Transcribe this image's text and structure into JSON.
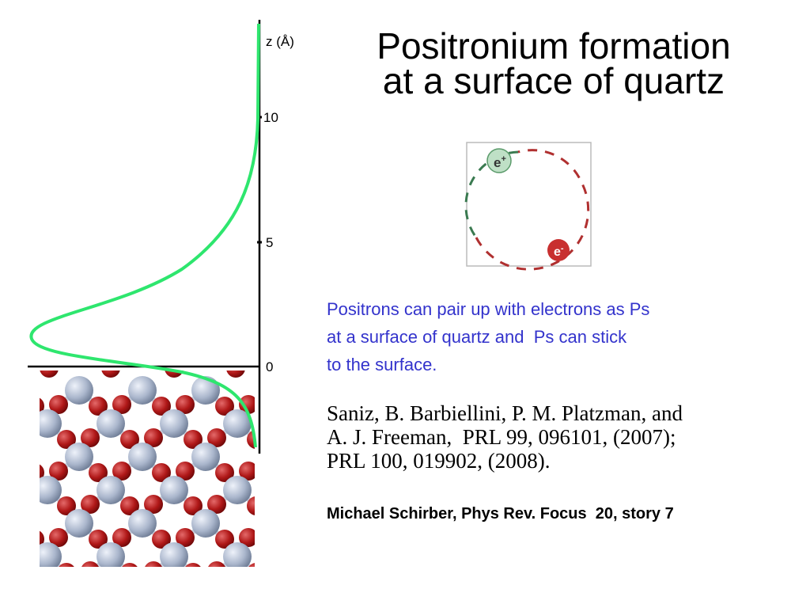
{
  "title": {
    "lines": [
      "Positronium formation",
      "at a surface of quartz"
    ]
  },
  "figure": {
    "axis_label": "z (Å)",
    "tick_labels": [
      "10",
      "5",
      "0"
    ]
  },
  "diagram": {
    "positron": {
      "symbol": "e",
      "charge": "+"
    },
    "electron": {
      "symbol": "e",
      "charge": "-"
    }
  },
  "description": {
    "lines": [
      "Positrons can pair up with electrons as Ps",
      "at a surface of quartz and  Ps can stick",
      "to the surface."
    ]
  },
  "citation": {
    "lines": [
      "Saniz, B. Barbiellini, P. M. Platzman, and",
      "A. J. Freeman,  PRL 99, 096101, (2007);",
      "PRL 100, 019902, (2008)."
    ]
  },
  "credit": "Michael Schirber, Phys Rev. Focus  20, story 7"
}
